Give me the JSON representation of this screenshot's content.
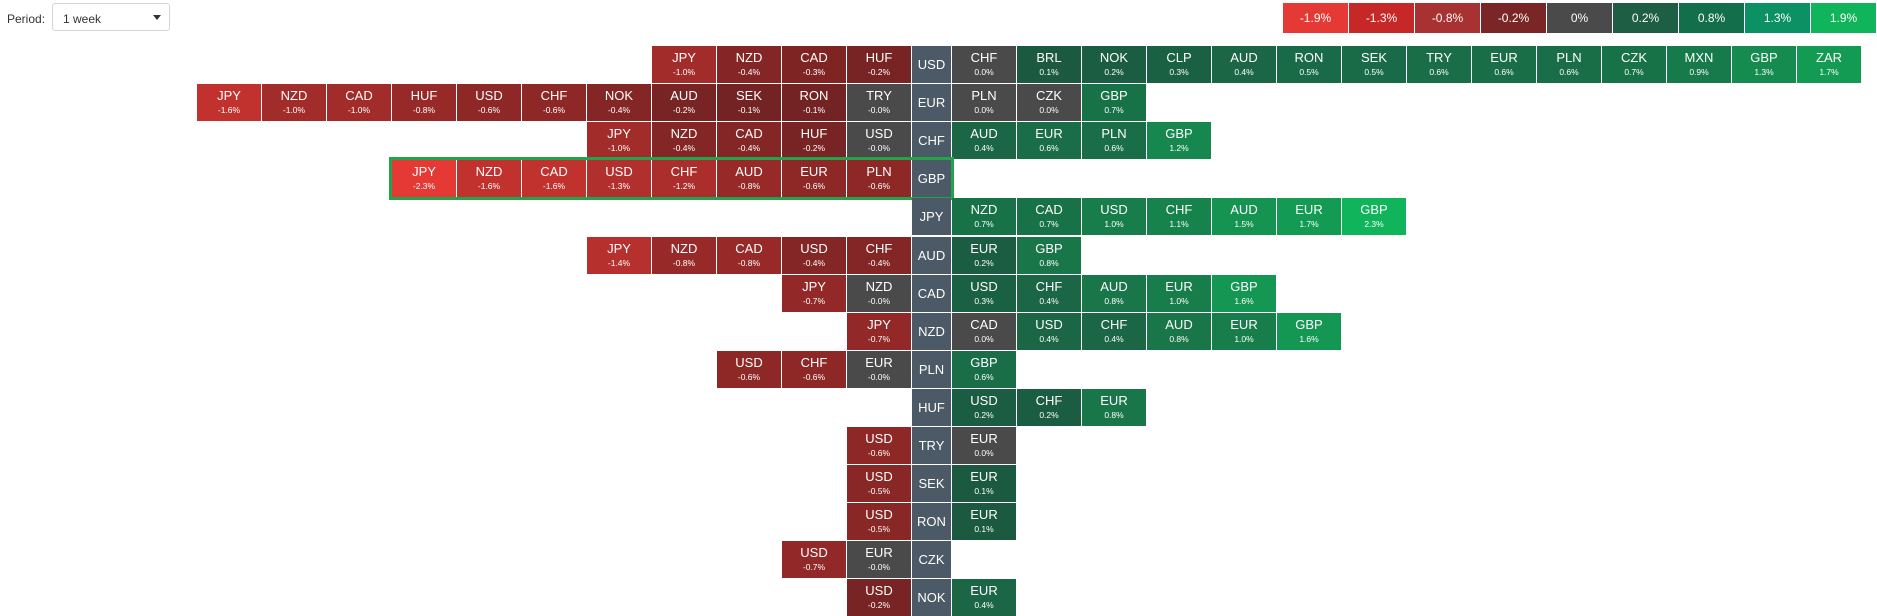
{
  "controls": {
    "period_label": "Period:",
    "period_value": "1 week"
  },
  "scale": [
    {
      "label": "-1.9%",
      "color": "#e53935"
    },
    {
      "label": "-1.3%",
      "color": "#c62828"
    },
    {
      "label": "-0.8%",
      "color": "#a83232"
    },
    {
      "label": "-0.2%",
      "color": "#7b2626"
    },
    {
      "label": "0%",
      "color": "#4a4a4a"
    },
    {
      "label": "0.2%",
      "color": "#1d5e44"
    },
    {
      "label": "0.8%",
      "color": "#136e4c"
    },
    {
      "label": "1.3%",
      "color": "#0b9163"
    },
    {
      "label": "1.9%",
      "color": "#10b45a"
    }
  ],
  "highlighted_base": "GBP",
  "rows": [
    {
      "base": "USD",
      "left": [
        {
          "c": "JPY",
          "p": "-1.0%"
        },
        {
          "c": "NZD",
          "p": "-0.4%"
        },
        {
          "c": "CAD",
          "p": "-0.3%"
        },
        {
          "c": "HUF",
          "p": "-0.2%"
        }
      ],
      "right": [
        {
          "c": "CHF",
          "p": "0.0%"
        },
        {
          "c": "BRL",
          "p": "0.1%"
        },
        {
          "c": "NOK",
          "p": "0.2%"
        },
        {
          "c": "CLP",
          "p": "0.3%"
        },
        {
          "c": "AUD",
          "p": "0.4%"
        },
        {
          "c": "RON",
          "p": "0.5%"
        },
        {
          "c": "SEK",
          "p": "0.5%"
        },
        {
          "c": "TRY",
          "p": "0.6%"
        },
        {
          "c": "EUR",
          "p": "0.6%"
        },
        {
          "c": "PLN",
          "p": "0.6%"
        },
        {
          "c": "CZK",
          "p": "0.7%"
        },
        {
          "c": "MXN",
          "p": "0.9%"
        },
        {
          "c": "GBP",
          "p": "1.3%"
        },
        {
          "c": "ZAR",
          "p": "1.7%"
        }
      ]
    },
    {
      "base": "EUR",
      "left": [
        {
          "c": "JPY",
          "p": "-1.6%"
        },
        {
          "c": "NZD",
          "p": "-1.0%"
        },
        {
          "c": "CAD",
          "p": "-1.0%"
        },
        {
          "c": "HUF",
          "p": "-0.8%"
        },
        {
          "c": "USD",
          "p": "-0.6%"
        },
        {
          "c": "CHF",
          "p": "-0.6%"
        },
        {
          "c": "NOK",
          "p": "-0.4%"
        },
        {
          "c": "AUD",
          "p": "-0.2%"
        },
        {
          "c": "SEK",
          "p": "-0.1%"
        },
        {
          "c": "RON",
          "p": "-0.1%"
        },
        {
          "c": "TRY",
          "p": "-0.0%"
        }
      ],
      "right": [
        {
          "c": "PLN",
          "p": "0.0%"
        },
        {
          "c": "CZK",
          "p": "0.0%"
        },
        {
          "c": "GBP",
          "p": "0.7%"
        }
      ]
    },
    {
      "base": "CHF",
      "left": [
        {
          "c": "JPY",
          "p": "-1.0%"
        },
        {
          "c": "NZD",
          "p": "-0.4%"
        },
        {
          "c": "CAD",
          "p": "-0.4%"
        },
        {
          "c": "HUF",
          "p": "-0.2%"
        },
        {
          "c": "USD",
          "p": "-0.0%"
        }
      ],
      "right": [
        {
          "c": "AUD",
          "p": "0.4%"
        },
        {
          "c": "EUR",
          "p": "0.6%"
        },
        {
          "c": "PLN",
          "p": "0.6%"
        },
        {
          "c": "GBP",
          "p": "1.2%"
        }
      ]
    },
    {
      "base": "GBP",
      "left": [
        {
          "c": "JPY",
          "p": "-2.3%"
        },
        {
          "c": "NZD",
          "p": "-1.6%"
        },
        {
          "c": "CAD",
          "p": "-1.6%"
        },
        {
          "c": "USD",
          "p": "-1.3%"
        },
        {
          "c": "CHF",
          "p": "-1.2%"
        },
        {
          "c": "AUD",
          "p": "-0.8%"
        },
        {
          "c": "EUR",
          "p": "-0.6%"
        },
        {
          "c": "PLN",
          "p": "-0.6%"
        }
      ],
      "right": []
    },
    {
      "base": "JPY",
      "left": [],
      "right": [
        {
          "c": "NZD",
          "p": "0.7%"
        },
        {
          "c": "CAD",
          "p": "0.7%"
        },
        {
          "c": "USD",
          "p": "1.0%"
        },
        {
          "c": "CHF",
          "p": "1.1%"
        },
        {
          "c": "AUD",
          "p": "1.5%"
        },
        {
          "c": "EUR",
          "p": "1.7%"
        },
        {
          "c": "GBP",
          "p": "2.3%"
        }
      ]
    },
    {
      "base": "AUD",
      "left": [
        {
          "c": "JPY",
          "p": "-1.4%"
        },
        {
          "c": "NZD",
          "p": "-0.8%"
        },
        {
          "c": "CAD",
          "p": "-0.8%"
        },
        {
          "c": "USD",
          "p": "-0.4%"
        },
        {
          "c": "CHF",
          "p": "-0.4%"
        }
      ],
      "right": [
        {
          "c": "EUR",
          "p": "0.2%"
        },
        {
          "c": "GBP",
          "p": "0.8%"
        }
      ]
    },
    {
      "base": "CAD",
      "left": [
        {
          "c": "JPY",
          "p": "-0.7%"
        },
        {
          "c": "NZD",
          "p": "-0.0%"
        }
      ],
      "right": [
        {
          "c": "USD",
          "p": "0.3%"
        },
        {
          "c": "CHF",
          "p": "0.4%"
        },
        {
          "c": "AUD",
          "p": "0.8%"
        },
        {
          "c": "EUR",
          "p": "1.0%"
        },
        {
          "c": "GBP",
          "p": "1.6%"
        }
      ]
    },
    {
      "base": "NZD",
      "left": [
        {
          "c": "JPY",
          "p": "-0.7%"
        }
      ],
      "right": [
        {
          "c": "CAD",
          "p": "0.0%"
        },
        {
          "c": "USD",
          "p": "0.4%"
        },
        {
          "c": "CHF",
          "p": "0.4%"
        },
        {
          "c": "AUD",
          "p": "0.8%"
        },
        {
          "c": "EUR",
          "p": "1.0%"
        },
        {
          "c": "GBP",
          "p": "1.6%"
        }
      ]
    },
    {
      "base": "PLN",
      "left": [
        {
          "c": "USD",
          "p": "-0.6%"
        },
        {
          "c": "CHF",
          "p": "-0.6%"
        },
        {
          "c": "EUR",
          "p": "-0.0%"
        }
      ],
      "right": [
        {
          "c": "GBP",
          "p": "0.6%"
        }
      ]
    },
    {
      "base": "HUF",
      "left": [],
      "right": [
        {
          "c": "USD",
          "p": "0.2%"
        },
        {
          "c": "CHF",
          "p": "0.2%"
        },
        {
          "c": "EUR",
          "p": "0.8%"
        }
      ]
    },
    {
      "base": "TRY",
      "left": [
        {
          "c": "USD",
          "p": "-0.6%"
        }
      ],
      "right": [
        {
          "c": "EUR",
          "p": "0.0%"
        }
      ]
    },
    {
      "base": "SEK",
      "left": [
        {
          "c": "USD",
          "p": "-0.5%"
        }
      ],
      "right": [
        {
          "c": "EUR",
          "p": "0.1%"
        }
      ]
    },
    {
      "base": "RON",
      "left": [
        {
          "c": "USD",
          "p": "-0.5%"
        }
      ],
      "right": [
        {
          "c": "EUR",
          "p": "0.1%"
        }
      ]
    },
    {
      "base": "CZK",
      "left": [
        {
          "c": "USD",
          "p": "-0.7%"
        },
        {
          "c": "EUR",
          "p": "-0.0%"
        }
      ],
      "right": []
    },
    {
      "base": "NOK",
      "left": [
        {
          "c": "USD",
          "p": "-0.2%"
        }
      ],
      "right": [
        {
          "c": "EUR",
          "p": "0.4%"
        }
      ]
    }
  ]
}
